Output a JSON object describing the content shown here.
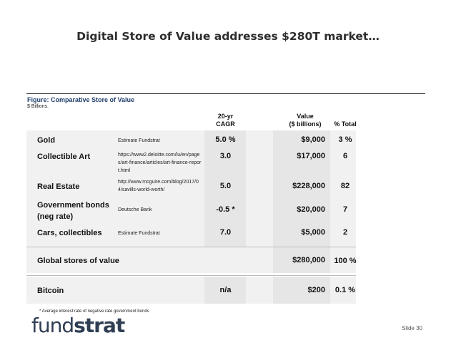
{
  "title": "Digital Store of Value addresses $280T market…",
  "figure": {
    "caption": "Figure: Comparative Store of Value",
    "subcaption": "$ Billions."
  },
  "headers": {
    "cagr": "20-yr\nCAGR",
    "value": "Value\n($ billions)",
    "pct": "% Total"
  },
  "rows": [
    {
      "asset": "Gold",
      "source": "Estimate Fundstrat",
      "cagr": "5.0 %",
      "value": "$9,000",
      "pct": "3 %"
    },
    {
      "asset": "Collectible Art",
      "source": "https://www2.deloitte.com/lu/en/pages/art-finance/articles/art-finance-report.html",
      "cagr": "3.0",
      "value": "$17,000",
      "pct": "6"
    },
    {
      "asset": "Real Estate",
      "source": "http://www.mcguire.com/blog/2017/04/savills-world-worth/",
      "cagr": "5.0",
      "value": "$228,000",
      "pct": "82"
    },
    {
      "asset": "Government bonds\n(neg rate)",
      "source": "Deutsche Bank",
      "cagr": "-0.5 *",
      "value": "$20,000",
      "pct": "7"
    },
    {
      "asset": "Cars, collectibles",
      "source": "Estimate Fundstrat",
      "cagr": "7.0",
      "value": "$5,000",
      "pct": "2"
    }
  ],
  "total": {
    "asset": "Global stores of value",
    "value": "$280,000",
    "pct": "100 %"
  },
  "bitcoin": {
    "asset": "Bitcoin",
    "cagr": "n/a",
    "value": "$200",
    "pct": "0.1 %"
  },
  "footnote": "* Average interest rate of negative rate government bonds",
  "logo": {
    "light": "fund",
    "bold": "strat"
  },
  "slide": "Slide  30"
}
